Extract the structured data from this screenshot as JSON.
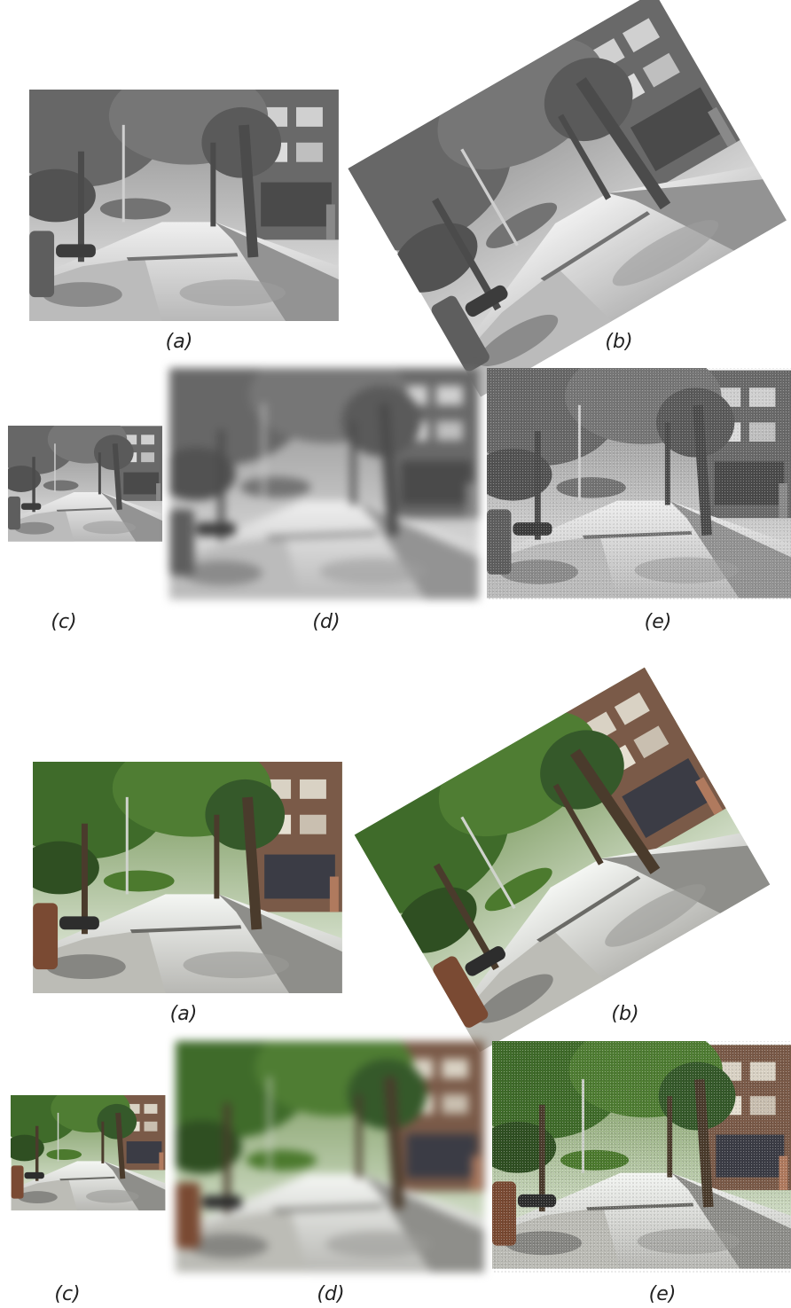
{
  "thermal_set": {
    "captions": {
      "a": "(a)",
      "b": "(b)",
      "c": "(c)",
      "d": "(d)",
      "e": "(e)"
    }
  },
  "color_set": {
    "captions": {
      "a": "(a)",
      "b": "(b)",
      "c": "(c)",
      "d": "(d)",
      "e": "(e)"
    }
  },
  "scene": "street-with-trees-and-buildings",
  "colors": {
    "foliage": "#3f6b2a",
    "sky_light": "#eef3ea",
    "road": "#d9d9d4",
    "building": "#7a5a48",
    "trunk": "#4a3b2c"
  }
}
